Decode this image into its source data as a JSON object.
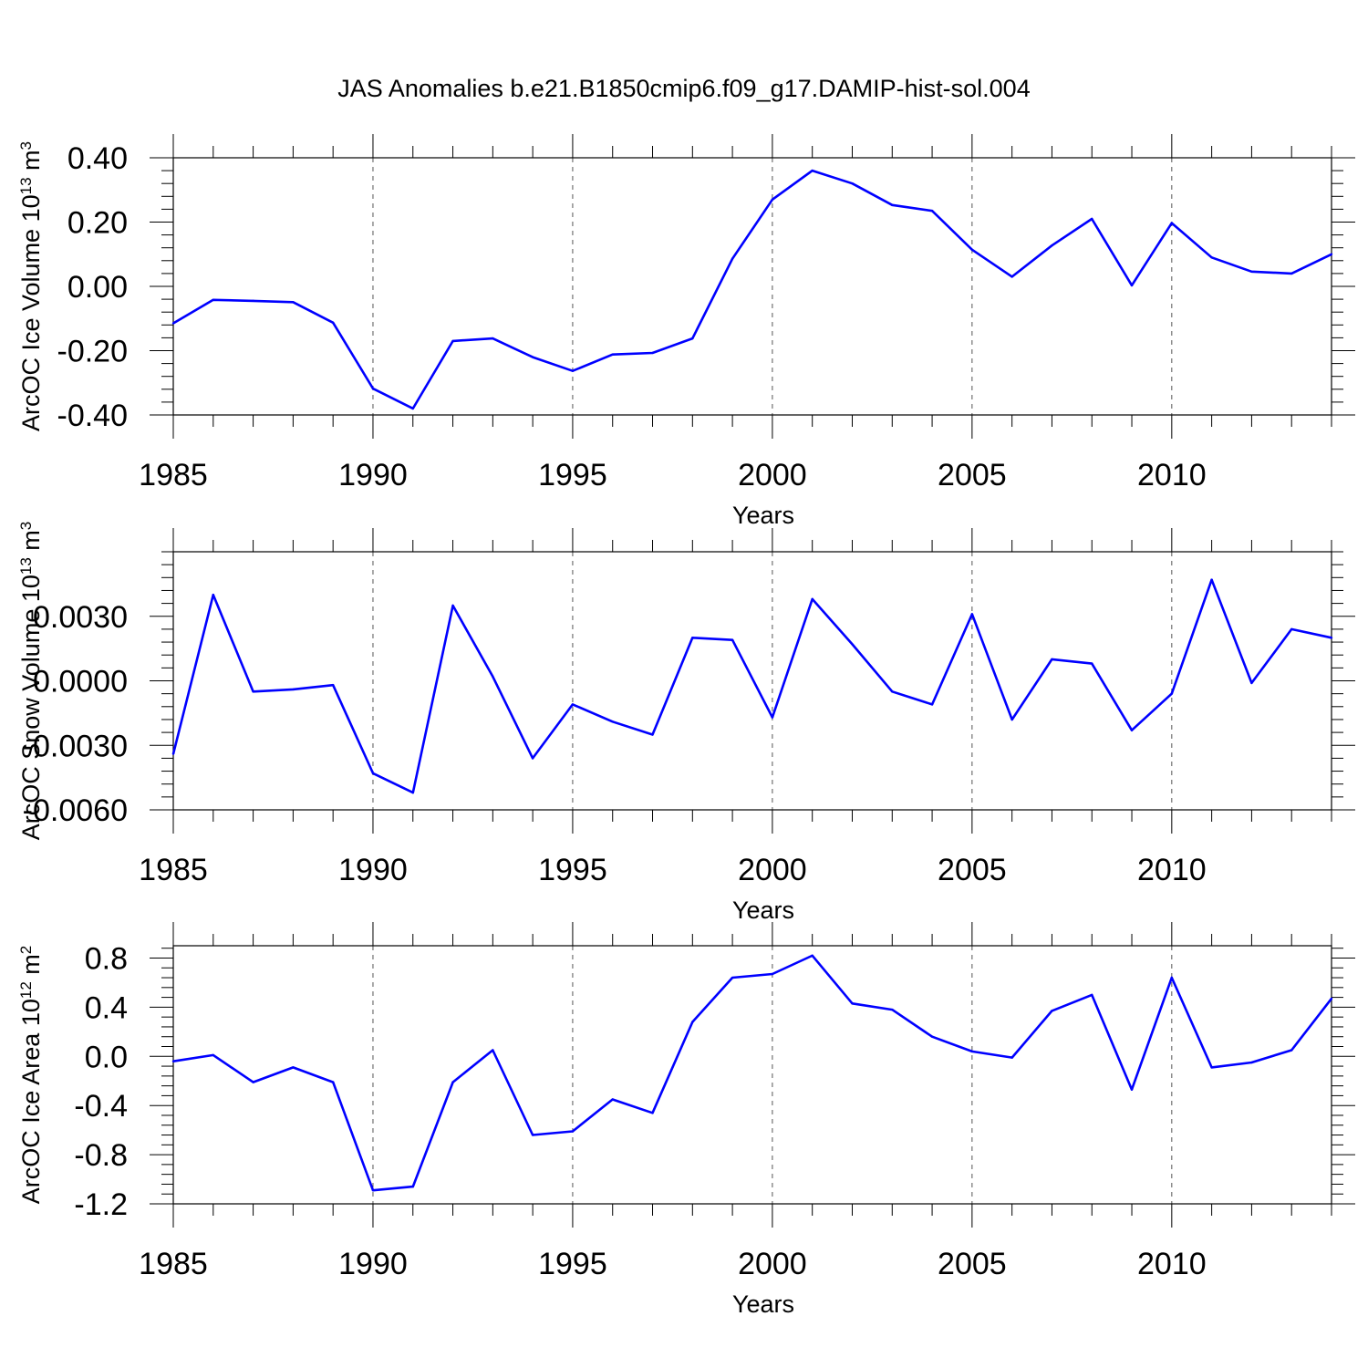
{
  "title": "JAS Anomalies b.e21.B1850cmip6.f09_g17.DAMIP-hist-sol.004",
  "colors": {
    "series": "#0000ff",
    "axis": "#000000",
    "grid": "#555555"
  },
  "chart_data": [
    {
      "type": "line",
      "ylabel": "ArcOC Ice Volume 10",
      "ylabel_sup": "13",
      "ylabel_unit": " m",
      "ylabel_unit_sup": "3",
      "xlabel": "Years",
      "xlim": [
        1985,
        2014
      ],
      "ylim": [
        -0.4,
        0.4
      ],
      "yticks": [
        -0.4,
        -0.2,
        0.0,
        0.2,
        0.4
      ],
      "ytick_labels": [
        "-0.40",
        "-0.20",
        "0.00",
        "0.20",
        "0.40"
      ],
      "xticks": [
        1985,
        1990,
        1995,
        2000,
        2005,
        2010
      ],
      "xtick_labels": [
        "1985",
        "1990",
        "1995",
        "2000",
        "2005",
        "2010"
      ],
      "gridlines_x": [
        1990,
        1995,
        2000,
        2005,
        2010
      ],
      "x": [
        1985,
        1986,
        1987,
        1988,
        1989,
        1990,
        1991,
        1992,
        1993,
        1994,
        1995,
        1996,
        1997,
        1998,
        1999,
        2000,
        2001,
        2002,
        2003,
        2004,
        2005,
        2006,
        2007,
        2008,
        2009,
        2010,
        2011,
        2012,
        2013,
        2014
      ],
      "values": [
        -0.115,
        -0.042,
        -0.045,
        -0.049,
        -0.113,
        -0.318,
        -0.38,
        -0.17,
        -0.162,
        -0.22,
        -0.263,
        -0.212,
        -0.207,
        -0.162,
        0.086,
        0.27,
        0.36,
        0.32,
        0.253,
        0.235,
        0.114,
        0.03,
        0.127,
        0.21,
        0.003,
        0.197,
        0.09,
        0.046,
        0.04,
        0.1
      ]
    },
    {
      "type": "line",
      "ylabel": "ArcOC Snow Volume 10",
      "ylabel_sup": "13",
      "ylabel_unit": " m",
      "ylabel_unit_sup": "3",
      "xlabel": "Years",
      "xlim": [
        1985,
        2014
      ],
      "ylim": [
        -0.006,
        0.006
      ],
      "yticks": [
        -0.006,
        -0.003,
        0.0,
        0.003
      ],
      "ytick_labels": [
        "-0.0060",
        "-0.0030",
        "0.0000",
        "0.0030"
      ],
      "xticks": [
        1985,
        1990,
        1995,
        2000,
        2005,
        2010
      ],
      "xtick_labels": [
        "1985",
        "1990",
        "1995",
        "2000",
        "2005",
        "2010"
      ],
      "gridlines_x": [
        1990,
        1995,
        2000,
        2005,
        2010
      ],
      "x": [
        1985,
        1986,
        1987,
        1988,
        1989,
        1990,
        1991,
        1992,
        1993,
        1994,
        1995,
        1996,
        1997,
        1998,
        1999,
        2000,
        2001,
        2002,
        2003,
        2004,
        2005,
        2006,
        2007,
        2008,
        2009,
        2010,
        2011,
        2012,
        2013,
        2014
      ],
      "values": [
        -0.0034,
        0.004,
        -0.0005,
        -0.0004,
        -0.0002,
        -0.0043,
        -0.0052,
        0.0035,
        0.0002,
        -0.0036,
        -0.0011,
        -0.0019,
        -0.0025,
        0.002,
        0.0019,
        -0.0017,
        0.0038,
        0.0017,
        -0.0005,
        -0.0011,
        0.0031,
        -0.0018,
        0.001,
        0.0008,
        -0.0023,
        -0.0006,
        0.0047,
        -0.0001,
        0.0024,
        0.002
      ]
    },
    {
      "type": "line",
      "ylabel": "ArcOC Ice Area 10",
      "ylabel_sup": "12",
      "ylabel_unit": " m",
      "ylabel_unit_sup": "2",
      "xlabel": "Years",
      "xlim": [
        1985,
        2014
      ],
      "ylim": [
        -1.2,
        0.9
      ],
      "yticks": [
        -1.2,
        -0.8,
        -0.4,
        0.0,
        0.4,
        0.8
      ],
      "ytick_labels": [
        "-1.2",
        "-0.8",
        "-0.4",
        "0.0",
        "0.4",
        "0.8"
      ],
      "xticks": [
        1985,
        1990,
        1995,
        2000,
        2005,
        2010
      ],
      "xtick_labels": [
        "1985",
        "1990",
        "1995",
        "2000",
        "2005",
        "2010"
      ],
      "gridlines_x": [
        1990,
        1995,
        2000,
        2005,
        2010
      ],
      "x": [
        1985,
        1986,
        1987,
        1988,
        1989,
        1990,
        1991,
        1992,
        1993,
        1994,
        1995,
        1996,
        1997,
        1998,
        1999,
        2000,
        2001,
        2002,
        2003,
        2004,
        2005,
        2006,
        2007,
        2008,
        2009,
        2010,
        2011,
        2012,
        2013,
        2014
      ],
      "values": [
        -0.04,
        0.01,
        -0.21,
        -0.09,
        -0.21,
        -1.09,
        -1.06,
        -0.21,
        0.05,
        -0.64,
        -0.61,
        -0.35,
        -0.46,
        0.28,
        0.64,
        0.67,
        0.82,
        0.43,
        0.38,
        0.16,
        0.04,
        -0.01,
        0.37,
        0.5,
        -0.27,
        0.64,
        -0.09,
        -0.05,
        0.05,
        0.47
      ]
    }
  ]
}
